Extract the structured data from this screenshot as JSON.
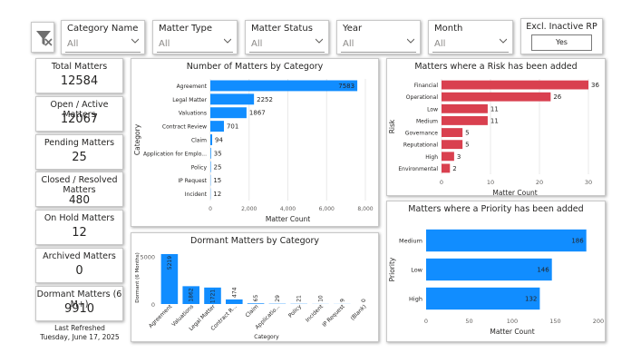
{
  "filters": [
    {
      "label": "Category Name",
      "value": "All"
    },
    {
      "label": "Matter Type",
      "value": "All"
    },
    {
      "label": "Matter Status",
      "value": "All"
    },
    {
      "label": "Year",
      "value": "All"
    },
    {
      "label": "Month",
      "value": "All"
    }
  ],
  "inactive_toggle": {
    "label": "Excl. Inactive RP",
    "value": "Yes"
  },
  "kpis": [
    {
      "title": "Total Matters",
      "value": "12584"
    },
    {
      "title": "Open / Active Matters",
      "value": "12067"
    },
    {
      "title": "Pending Matters",
      "value": "25"
    },
    {
      "title": "Closed / Resolved Matters",
      "value": "480"
    },
    {
      "title": "On Hold Matters",
      "value": "12"
    },
    {
      "title": "Archived Matters",
      "value": "0"
    },
    {
      "title": "Dormant Matters (6 M+)",
      "value": "9910"
    }
  ],
  "refresh": {
    "label": "Last Refreshed",
    "date": "Tuesday, June 17, 2025"
  },
  "colors": {
    "blue": "#118DFF",
    "red": "#D9404F",
    "grid": "#e6e6e6"
  },
  "icons": {
    "clear_filters": "filter-clear-icon",
    "dropdown": "chevron-down-icon"
  },
  "chart_data": [
    {
      "type": "bar",
      "orientation": "horizontal",
      "title": "Number of Matters by Category",
      "xlabel": "Matter Count",
      "ylabel": "Category",
      "categories": [
        "Agreement",
        "Legal Matter",
        "Valuations",
        "Contract Review",
        "Claim",
        "Application for Emplo...",
        "Policy",
        "IP Request",
        "Incident"
      ],
      "values": [
        7583,
        2252,
        1867,
        701,
        94,
        35,
        25,
        15,
        12
      ],
      "xlim": [
        0,
        8000
      ],
      "xticks": [
        "0",
        "2,000",
        "4,000",
        "6,000",
        "8,000"
      ],
      "color": "#118DFF"
    },
    {
      "type": "bar",
      "orientation": "vertical",
      "title": "Dormant Matters by Category",
      "xlabel": "Category",
      "ylabel": "Dormant (6 Months)",
      "categories": [
        "Agreement",
        "Valuations",
        "Legal Matter",
        "Contract R...",
        "Claim",
        "Applicatio...",
        "Policy",
        "Incident",
        "IP Request",
        "(Blank)"
      ],
      "values": [
        5219,
        1862,
        1721,
        474,
        65,
        29,
        21,
        10,
        9,
        0
      ],
      "ylim": [
        0,
        5500
      ],
      "yticks": [
        "0",
        "5000"
      ],
      "color": "#118DFF"
    },
    {
      "type": "bar",
      "orientation": "horizontal",
      "title": "Matters where a Risk has been added",
      "xlabel": "Matter Count",
      "ylabel": "Risk",
      "categories": [
        "Financial",
        "Operational",
        "Low",
        "Medium",
        "Governance",
        "Reputational",
        "High",
        "Environmental"
      ],
      "values": [
        36,
        26,
        11,
        11,
        5,
        5,
        3,
        2
      ],
      "xlim": [
        0,
        35
      ],
      "xticks": [
        "0",
        "10",
        "20",
        "30"
      ],
      "color": "#D9404F"
    },
    {
      "type": "bar",
      "orientation": "horizontal",
      "title": "Matters where a Priority has been added",
      "xlabel": "Matter Count",
      "ylabel": "Priority",
      "categories": [
        "Medium",
        "Low",
        "High"
      ],
      "values": [
        186,
        146,
        132
      ],
      "xlim": [
        0,
        200
      ],
      "xticks": [
        "0",
        "50",
        "100",
        "150",
        "200"
      ],
      "color": "#118DFF"
    }
  ]
}
